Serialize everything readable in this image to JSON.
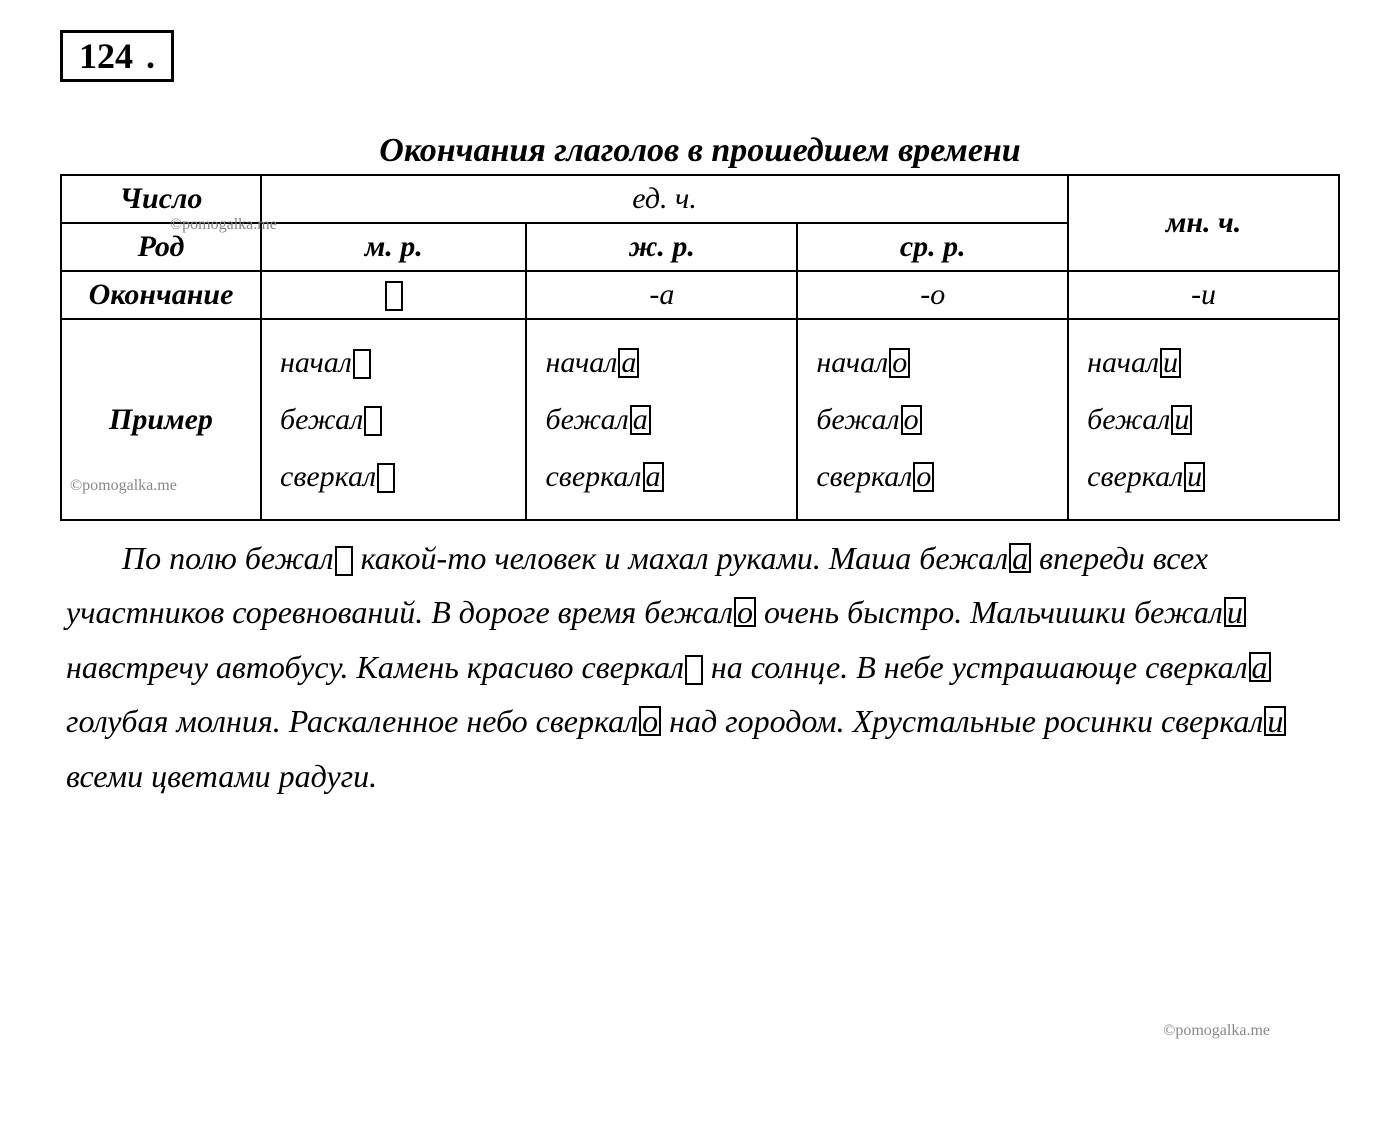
{
  "exercise_number": "124",
  "title": "Окончания глаголов в прошедшем времени",
  "watermark": "©pomogalka.me",
  "table": {
    "row_labels": {
      "number": "Число",
      "gender": "Род",
      "ending": "Окончание",
      "example": "Пример"
    },
    "headers": {
      "sg": "ед. ч.",
      "pl": "мн. ч.",
      "m": "м. р.",
      "f": "ж. р.",
      "n": "ср. р."
    },
    "endings": {
      "m": "",
      "f": "-а",
      "n": "-о",
      "pl": "-и"
    },
    "examples": {
      "m": [
        {
          "stem": "начал",
          "ending": ""
        },
        {
          "stem": "бежал",
          "ending": ""
        },
        {
          "stem": "сверкал",
          "ending": ""
        }
      ],
      "f": [
        {
          "stem": "начал",
          "ending": "а"
        },
        {
          "stem": "бежал",
          "ending": "а"
        },
        {
          "stem": "сверкал",
          "ending": "а"
        }
      ],
      "n": [
        {
          "stem": "начал",
          "ending": "о"
        },
        {
          "stem": "бежал",
          "ending": "о"
        },
        {
          "stem": "сверкал",
          "ending": "о"
        }
      ],
      "pl": [
        {
          "stem": "начал",
          "ending": "и"
        },
        {
          "stem": "бежал",
          "ending": "и"
        },
        {
          "stem": "сверкал",
          "ending": "и"
        }
      ]
    }
  },
  "body": {
    "segments": [
      {
        "t": "indent"
      },
      {
        "t": "text",
        "v": "По полю бежал"
      },
      {
        "t": "box",
        "v": ""
      },
      {
        "t": "text",
        "v": " какой-то человек и махал руками. Маша бежал"
      },
      {
        "t": "box",
        "v": "а"
      },
      {
        "t": "text",
        "v": " впереди всех участников соревнований. В дороге время бежал"
      },
      {
        "t": "box",
        "v": "о"
      },
      {
        "t": "text",
        "v": " очень быстро. Мальчишки бежал"
      },
      {
        "t": "box",
        "v": "и"
      },
      {
        "t": "text",
        "v": " навстречу автобусу. Камень красиво сверкал"
      },
      {
        "t": "box",
        "v": ""
      },
      {
        "t": "text",
        "v": " на солнце. В небе устрашающе сверкал"
      },
      {
        "t": "box",
        "v": "а"
      },
      {
        "t": "text",
        "v": " голубая молния. Раскаленное небо сверкал"
      },
      {
        "t": "box",
        "v": "о"
      },
      {
        "t": "text",
        "v": " над городом. Хрустальные росинки сверкал"
      },
      {
        "t": "box",
        "v": "и"
      },
      {
        "t": "text",
        "v": " всеми цветами радуги."
      }
    ]
  },
  "style": {
    "page_bg": "#ffffff",
    "text_color": "#000000",
    "watermark_color": "#888888",
    "border_color": "#000000",
    "font_family": "Georgia, Times New Roman, serif",
    "title_fontsize": 34,
    "body_fontsize": 32,
    "cell_fontsize": 30,
    "exercise_fontsize": 36,
    "box_border_width": 2,
    "table_border_width": 2
  }
}
